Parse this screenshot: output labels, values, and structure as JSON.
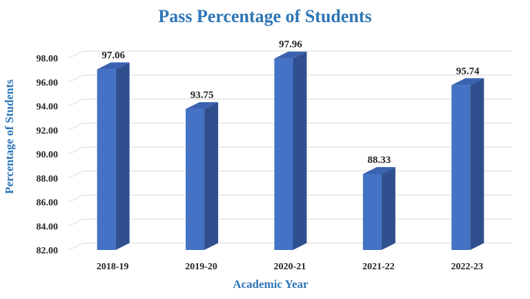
{
  "chart_data": {
    "type": "bar",
    "title": "Pass Percentage of Students",
    "xlabel": "Academic Year",
    "ylabel": "Percentage of Students",
    "categories": [
      "2018-19",
      "2019-20",
      "2020-21",
      "2021-22",
      "2022-23"
    ],
    "values": [
      97.06,
      93.75,
      97.96,
      88.33,
      95.74
    ],
    "data_labels": [
      "97.06",
      "93.75",
      "97.96",
      "88.33",
      "95.74"
    ],
    "ylim": [
      82,
      98
    ],
    "yticks": [
      82,
      84,
      86,
      88,
      90,
      92,
      94,
      96,
      98
    ],
    "ytick_labels": [
      "82.00",
      "84.00",
      "86.00",
      "88.00",
      "90.00",
      "92.00",
      "94.00",
      "96.00",
      "98.00"
    ],
    "grid": true,
    "style": "3d-column",
    "colors": {
      "bar_front": "#4472c4",
      "bar_side": "#2f4f8f",
      "bar_top": "#3a62b0",
      "title": "#2e75b6",
      "grid": "#d9d9d9"
    }
  }
}
